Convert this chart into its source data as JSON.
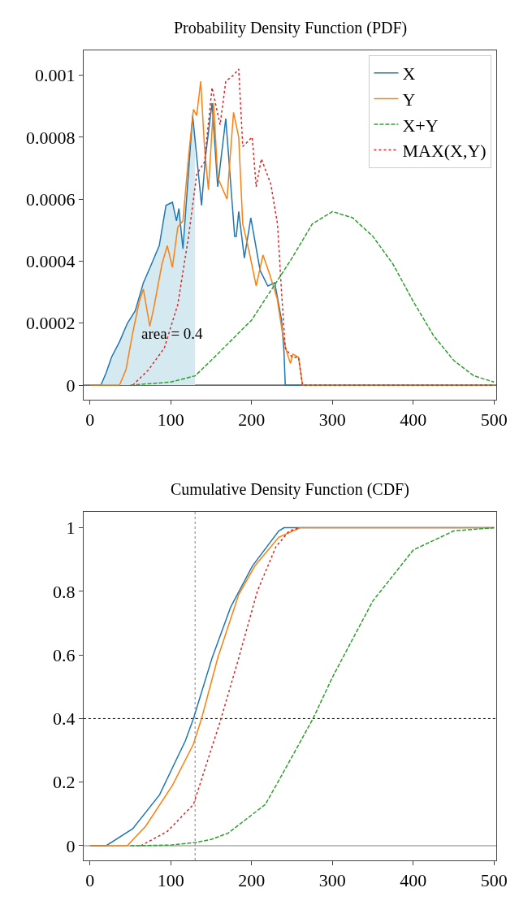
{
  "chart_data": [
    {
      "type": "line",
      "title": "Probability Density Function (PDF)",
      "xlim": [
        -8,
        503
      ],
      "ylim": [
        -4.7e-05,
        0.00108
      ],
      "xticks": [
        0,
        100,
        200,
        300,
        400,
        500
      ],
      "yticks": [
        0,
        0.0002,
        0.0004,
        0.0006,
        0.0008,
        0.001
      ],
      "grid": false,
      "legend": "top right",
      "annotations": [
        "area = 0.4"
      ],
      "ref_lines": [
        {
          "axis": "y",
          "value": 0,
          "color": "#000000",
          "line_style": "solid"
        }
      ],
      "series": [
        {
          "type": "area",
          "color": "#d5e9f1",
          "x": [
            0,
            13.5,
            20,
            26.6,
            36.5,
            46.3,
            56,
            66,
            76,
            85.7,
            94,
            102,
            107,
            110,
            115,
            127,
            130
          ],
          "values": [
            0,
            0,
            4e-05,
            9e-05,
            0.00014,
            0.0002,
            0.00024,
            0.00033,
            0.00039,
            0.00045,
            0.00058,
            0.00059,
            0.00053,
            0.00057,
            0.00044,
            0.00087,
            0.0008
          ]
        },
        {
          "name": "X",
          "color": "#1f77b4",
          "line_style": "solid",
          "x": [
            0,
            13.5,
            20,
            26.6,
            36.5,
            46.3,
            56,
            66,
            76,
            85.7,
            94,
            102,
            107,
            110,
            115,
            127,
            138,
            143,
            151,
            158,
            168,
            179,
            181,
            184,
            191,
            199,
            210.5,
            220,
            228.6,
            237,
            240,
            241.6,
            500
          ],
          "values": [
            0,
            0,
            4e-05,
            9e-05,
            0.00014,
            0.0002,
            0.00024,
            0.00033,
            0.00039,
            0.00045,
            0.00058,
            0.00059,
            0.00053,
            0.00057,
            0.00044,
            0.00087,
            0.00058,
            0.00074,
            0.00091,
            0.00064,
            0.00086,
            0.00048,
            0.00048,
            0.00056,
            0.00041,
            0.00054,
            0.00037,
            0.00032,
            0.00033,
            0.00021,
            0.00011,
            0,
            0
          ]
        },
        {
          "name": "Y",
          "color": "#ff7f0e",
          "line_style": "solid",
          "x": [
            0,
            36.5,
            44.5,
            53,
            61,
            66,
            74,
            79,
            89,
            95.6,
            102,
            108.6,
            115,
            122,
            128,
            132,
            137,
            141.6,
            146.5,
            153,
            158,
            169.5,
            177.6,
            184,
            189,
            197,
            205.6,
            214,
            222,
            231.5,
            238,
            243,
            248,
            251,
            258,
            263,
            500
          ],
          "values": [
            0,
            0,
            5e-05,
            0.00017,
            0.00027,
            0.00031,
            0.00019,
            0.00025,
            0.00039,
            0.00045,
            0.00038,
            0.00051,
            0.00053,
            0.00074,
            0.00089,
            0.00087,
            0.00098,
            0.00077,
            0.00063,
            0.00091,
            0.00067,
            0.0006,
            0.00088,
            0.0008,
            0.00052,
            0.00043,
            0.00032,
            0.00042,
            0.00036,
            0.00028,
            0.00017,
            0.00011,
            7e-05,
            0.0001,
            9e-05,
            0,
            0
          ]
        },
        {
          "name": "X+Y",
          "color": "#2ca02c",
          "line_style": "dashed",
          "x": [
            50,
            100,
            130,
            150,
            200,
            250,
            275,
            300,
            325,
            350,
            375,
            400,
            425,
            450,
            475,
            500
          ],
          "values": [
            0,
            1e-05,
            3e-05,
            8e-05,
            0.00021,
            0.00041,
            0.00052,
            0.00056,
            0.00054,
            0.00048,
            0.00039,
            0.00027,
            0.00016,
            8e-05,
            3e-05,
            1e-05
          ]
        },
        {
          "name": "MAX(X,Y)",
          "color": "#d62728",
          "line_style": "dotted",
          "x": [
            53,
            72.6,
            92,
            108.6,
            122,
            132,
            141.6,
            151,
            161,
            168,
            177.6,
            184,
            189,
            200.7,
            205.6,
            212,
            223.6,
            232,
            237,
            241.6,
            250,
            258,
            263,
            500
          ],
          "values": [
            0,
            5e-05,
            0.00012,
            0.00026,
            0.00048,
            0.00068,
            0.00072,
            0.00096,
            0.00084,
            0.00098,
            0.001,
            0.00102,
            0.00077,
            0.0008,
            0.00064,
            0.00073,
            0.00065,
            0.00052,
            0.0003,
            0.00012,
            9e-05,
            9e-05,
            0,
            0
          ]
        }
      ]
    },
    {
      "type": "line",
      "title": "Cumulative Density Function (CDF)",
      "xlim": [
        -8,
        503
      ],
      "ylim": [
        -0.046,
        1.05
      ],
      "xticks": [
        0,
        100,
        200,
        300,
        400,
        500
      ],
      "yticks": [
        0,
        0.2,
        0.4,
        0.6,
        0.8,
        1
      ],
      "grid": false,
      "legend": false,
      "ref_lines": [
        {
          "axis": "y",
          "value": 0,
          "color": "#808080",
          "line_style": "solid"
        },
        {
          "axis": "y",
          "value": 0.4,
          "color": "#000000",
          "line_style": "dotted"
        },
        {
          "axis": "x",
          "value": 130,
          "color": "#808080",
          "line_style": "dotted"
        }
      ],
      "series": [
        {
          "color": "#1f77b4",
          "line_style": "solid",
          "x": [
            0,
            20,
            53,
            86,
            118,
            128,
            151,
            174,
            201,
            233.5,
            240,
            500
          ],
          "values": [
            0,
            0,
            0.054,
            0.16,
            0.33,
            0.4,
            0.59,
            0.75,
            0.88,
            0.99,
            1,
            1
          ]
        },
        {
          "color": "#ff7f0e",
          "line_style": "solid",
          "x": [
            0,
            46,
            69,
            102,
            128,
            138,
            158,
            184,
            204,
            233.5,
            260,
            500
          ],
          "values": [
            0,
            0,
            0.062,
            0.19,
            0.32,
            0.4,
            0.59,
            0.79,
            0.88,
            0.97,
            1,
            1
          ]
        },
        {
          "color": "#2ca02c",
          "line_style": "dashed",
          "x": [
            50,
            100,
            130,
            150,
            171,
            217,
            250,
            276,
            300,
            350,
            400,
            450,
            500
          ],
          "values": [
            0,
            0.002,
            0.01,
            0.02,
            0.04,
            0.13,
            0.28,
            0.4,
            0.53,
            0.77,
            0.93,
            0.99,
            1
          ]
        },
        {
          "color": "#d62728",
          "line_style": "dotted",
          "x": [
            63,
            95.6,
            128,
            161,
            184,
            207,
            230,
            246.5,
            260
          ],
          "values": [
            0,
            0.045,
            0.13,
            0.39,
            0.59,
            0.8,
            0.94,
            0.99,
            1
          ]
        }
      ]
    }
  ]
}
